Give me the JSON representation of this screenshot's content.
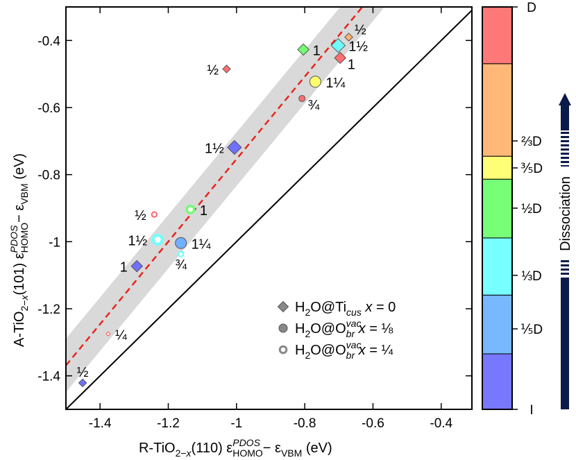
{
  "chart_data": {
    "type": "scatter",
    "xlim": [
      -1.5,
      -0.31
    ],
    "ylim": [
      -1.5,
      -0.3
    ],
    "xticks": [
      -1.4,
      -1.2,
      -1,
      -0.8,
      -0.6,
      -0.4
    ],
    "yticks": [
      -0.4,
      -0.6,
      -0.8,
      -1,
      -1.2,
      -1.4
    ],
    "diagonal": true,
    "fit": {
      "x": [
        -1.5,
        -0.631
      ],
      "y": [
        -1.369,
        -0.3
      ],
      "band": 0.08,
      "color": "#e8241c",
      "band_color": "#d9d9d9"
    },
    "x_label": [
      {
        "text": "R-TiO"
      },
      {
        "text": "2−",
        "style": "sub"
      },
      {
        "text": "x",
        "style": "sub-it"
      },
      {
        "text": "(110) ε"
      },
      {
        "text": "PDOS",
        "style": "sup-it"
      },
      {
        "text": "HOMO",
        "style": "sub",
        "under": true
      },
      {
        "text": "− ε"
      },
      {
        "text": "VBM",
        "style": "sub"
      },
      {
        "text": " (eV)"
      }
    ],
    "y_label": [
      {
        "text": "A-TiO"
      },
      {
        "text": "2−",
        "style": "sub"
      },
      {
        "text": "x",
        "style": "sub-it"
      },
      {
        "text": "(101)  ε"
      },
      {
        "text": "PDOS",
        "style": "sup-it"
      },
      {
        "text": "HOMO",
        "style": "sub",
        "under": true
      },
      {
        "text": "− ε"
      },
      {
        "text": "VBM",
        "style": "sub"
      },
      {
        "text": " (eV)"
      }
    ],
    "legend": [
      {
        "marker": "diamond",
        "label": [
          {
            "text": "H"
          },
          {
            "text": "2",
            "style": "sub"
          },
          {
            "text": "O@Ti"
          },
          {
            "text": "cus",
            "style": "sub-it"
          },
          {
            "text": " x",
            "style": "it"
          },
          {
            "text": " = 0"
          }
        ]
      },
      {
        "marker": "circle",
        "label": [
          {
            "text": "H"
          },
          {
            "text": "2",
            "style": "sub"
          },
          {
            "text": "O@O"
          },
          {
            "text": "vac",
            "style": "sup-it"
          },
          {
            "text": "br",
            "style": "sub-it",
            "under": true
          },
          {
            "text": " x",
            "style": "it"
          },
          {
            "text": " = ⅛"
          }
        ]
      },
      {
        "marker": "open-circle",
        "label": [
          {
            "text": "H"
          },
          {
            "text": "2",
            "style": "sub"
          },
          {
            "text": "O@O"
          },
          {
            "text": "vac",
            "style": "sup-it"
          },
          {
            "text": "br",
            "style": "sub-it",
            "under": true
          },
          {
            "text": " x",
            "style": "it"
          },
          {
            "text": " = ¼"
          }
        ]
      }
    ],
    "points": [
      {
        "x": -0.804,
        "y": -0.427,
        "marker": "diamond",
        "size": "medium",
        "color": "#70ff70",
        "label": "1",
        "label_pos": "right"
      },
      {
        "x": -0.671,
        "y": -0.39,
        "marker": "diamond",
        "size": "small",
        "color": "#ffb570",
        "label": "½",
        "label_pos": "above-right"
      },
      {
        "x": -0.702,
        "y": -0.415,
        "marker": "diamond",
        "size": "large",
        "color": "#70ffff",
        "label": "1½",
        "label_pos": "right"
      },
      {
        "x": -0.696,
        "y": -0.452,
        "marker": "diamond",
        "size": "medium",
        "color": "#ff6f6f",
        "label": "1",
        "label_pos": "below-right"
      },
      {
        "x": -1.029,
        "y": -0.485,
        "marker": "diamond",
        "size": "small",
        "color": "#ff6f6f",
        "label": "½",
        "label_pos": "left"
      },
      {
        "x": -0.769,
        "y": -0.523,
        "marker": "circle",
        "size": "large",
        "color": "#ffff70",
        "label": "1¼",
        "label_pos": "right"
      },
      {
        "x": -0.808,
        "y": -0.573,
        "marker": "circle",
        "size": "small",
        "color": "#ff6f6f",
        "label": "¾",
        "label_pos": "below-right"
      },
      {
        "x": -1.006,
        "y": -0.719,
        "marker": "diamond",
        "size": "large",
        "color": "#7070ff",
        "label": "1½",
        "label_pos": "left"
      },
      {
        "x": -1.241,
        "y": -0.919,
        "marker": "open-circle",
        "size": "small",
        "color": "#ff6f6f",
        "label": "½",
        "label_pos": "left"
      },
      {
        "x": -1.135,
        "y": -0.904,
        "marker": "open-circle",
        "size": "medium",
        "color": "#70ff70",
        "label": "1",
        "label_pos": "right"
      },
      {
        "x": -1.231,
        "y": -0.994,
        "marker": "open-circle",
        "size": "large",
        "color": "#70ffff",
        "label": "1½",
        "label_pos": "left"
      },
      {
        "x": -1.163,
        "y": -1.004,
        "marker": "circle",
        "size": "large",
        "color": "#70b0ff",
        "label": "1¼",
        "label_pos": "right"
      },
      {
        "x": -1.163,
        "y": -1.037,
        "marker": "open-circle",
        "size": "small",
        "color": "#70ffff",
        "label": "¾",
        "label_pos": "below"
      },
      {
        "x": -1.292,
        "y": -1.073,
        "marker": "diamond",
        "size": "medium",
        "color": "#7070ff",
        "label": "1",
        "label_pos": "left"
      },
      {
        "x": -1.376,
        "y": -1.275,
        "marker": "open-circle",
        "size": "tiny",
        "color": "#ff6f6f",
        "label": "¼",
        "label_pos": "right"
      },
      {
        "x": -1.451,
        "y": -1.421,
        "marker": "diamond",
        "size": "small",
        "color": "#7070ff",
        "label": "½",
        "label_pos": "above"
      }
    ],
    "colorbar": {
      "lim": [
        0,
        1
      ],
      "bounds": [
        0,
        0.138,
        0.284,
        0.426,
        0.572,
        0.629,
        0.859,
        1
      ],
      "colors": [
        "#7878ff",
        "#78b8ff",
        "#78ffff",
        "#78ff78",
        "#ffff78",
        "#ffb878",
        "#ff7878"
      ],
      "ticks": [
        {
          "value": 1,
          "label": "D"
        },
        {
          "value": 0.667,
          "label": "⅔D"
        },
        {
          "value": 0.6,
          "label": "⅗D"
        },
        {
          "value": 0.5,
          "label": "½D"
        },
        {
          "value": 0.333,
          "label": "⅓D"
        },
        {
          "value": 0.2,
          "label": "⅕D"
        },
        {
          "value": 0,
          "label": "I"
        }
      ],
      "arrow_label": "Dissociation"
    }
  }
}
